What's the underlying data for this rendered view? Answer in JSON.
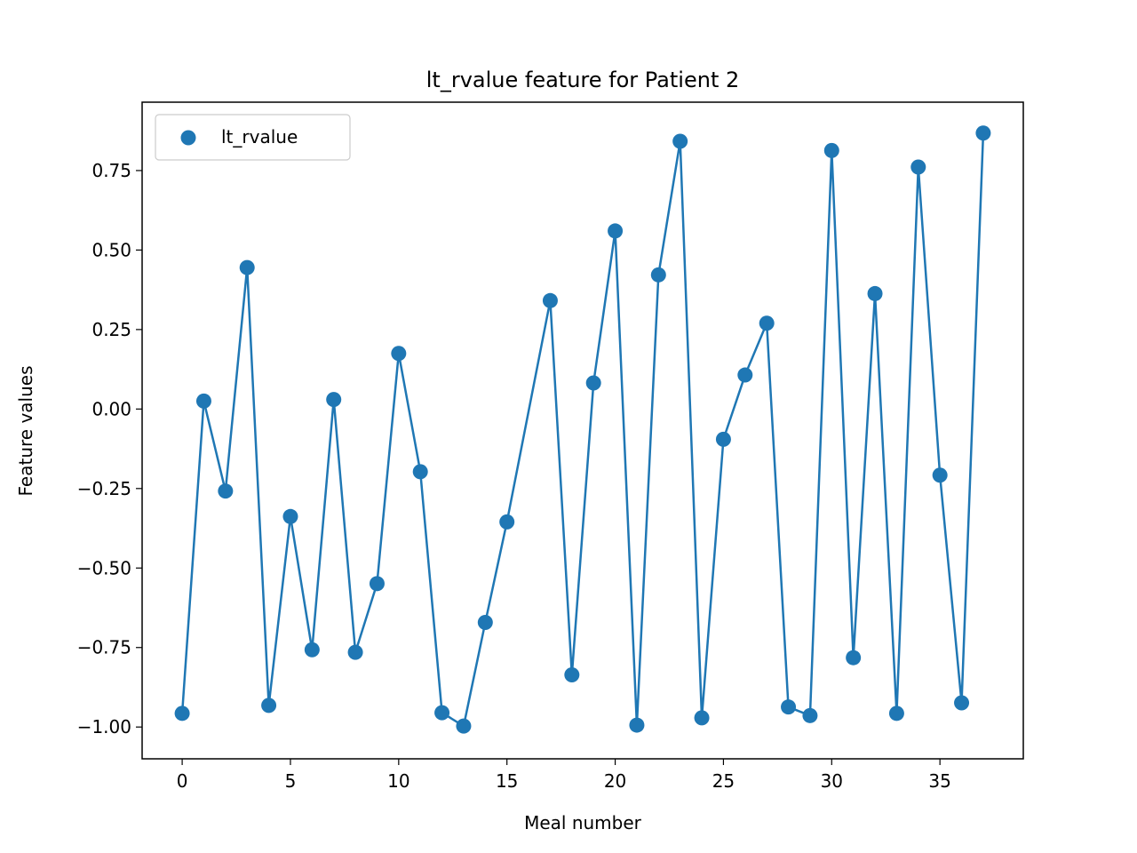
{
  "chart_data": {
    "type": "line",
    "title": "lt_rvalue feature for Patient 2",
    "xlabel": "Meal number",
    "ylabel": "Feature values",
    "xlim": [
      -1.85,
      38.85
    ],
    "ylim": [
      -1.1,
      0.965
    ],
    "xticks": [
      0,
      5,
      10,
      15,
      20,
      25,
      30,
      35
    ],
    "xtick_labels": [
      "0",
      "5",
      "10",
      "15",
      "20",
      "25",
      "30",
      "35"
    ],
    "yticks": [
      -1.0,
      -0.75,
      -0.5,
      -0.25,
      0.0,
      0.25,
      0.5,
      0.75
    ],
    "ytick_labels": [
      "−1.00",
      "−0.75",
      "−0.50",
      "−0.25",
      "0.00",
      "0.25",
      "0.50",
      "0.75"
    ],
    "grid": false,
    "legend_position": "top-left",
    "series": [
      {
        "name": "lt_rvalue",
        "color": "#1f77b4",
        "markers": true,
        "x": [
          0,
          1,
          2,
          3,
          4,
          5,
          6,
          7,
          8,
          9,
          10,
          11,
          12,
          13,
          14,
          15,
          17,
          18,
          19,
          20,
          21,
          22,
          23,
          24,
          25,
          26,
          27,
          28,
          29,
          30,
          31,
          32,
          33,
          34,
          35,
          36,
          37
        ],
        "y": [
          -0.957,
          0.025,
          -0.258,
          0.445,
          -0.932,
          -0.338,
          -0.757,
          0.03,
          -0.765,
          -0.549,
          0.175,
          -0.197,
          -0.955,
          -0.997,
          -0.671,
          -0.355,
          0.341,
          -0.836,
          0.082,
          0.56,
          -0.994,
          0.422,
          0.842,
          -0.971,
          -0.095,
          0.107,
          0.27,
          -0.937,
          -0.964,
          0.813,
          -0.782,
          0.363,
          -0.957,
          0.761,
          -0.208,
          -0.924,
          0.868
        ]
      }
    ]
  }
}
